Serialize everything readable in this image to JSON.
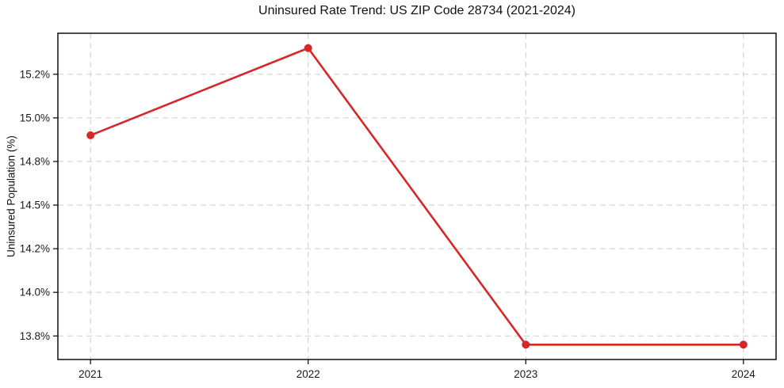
{
  "chart_data": {
    "type": "line",
    "title": "Uninsured Rate Trend: US ZIP Code 28734 (2021-2024)",
    "xlabel": "",
    "ylabel": "Uninsured Population (%)",
    "x": [
      2021,
      2022,
      2023,
      2024
    ],
    "series": [
      {
        "values": [
          14.9,
          15.4,
          13.7,
          13.7
        ],
        "color": "#d62728",
        "marker": "circle"
      }
    ],
    "xticks": [
      2021,
      2022,
      2023,
      2024
    ],
    "xtick_labels": [
      "2021",
      "2022",
      "2023",
      "2024"
    ],
    "yticks": [
      13.75,
      14.0,
      14.25,
      14.5,
      14.75,
      15.0,
      15.25
    ],
    "ytick_labels": [
      "13.8%",
      "14.0%",
      "14.2%",
      "14.5%",
      "14.8%",
      "15.0%",
      "15.2%"
    ],
    "xlim": [
      2020.85,
      2024.15
    ],
    "ylim": [
      13.615,
      15.485
    ],
    "grid": true,
    "grid_style": "dashed",
    "legend_position": "none",
    "colors": {
      "line": "#d62728",
      "grid": "#cdcdcd",
      "axis": "#000000",
      "tick_label": "#1a1a1a",
      "background": "#ffffff"
    }
  }
}
